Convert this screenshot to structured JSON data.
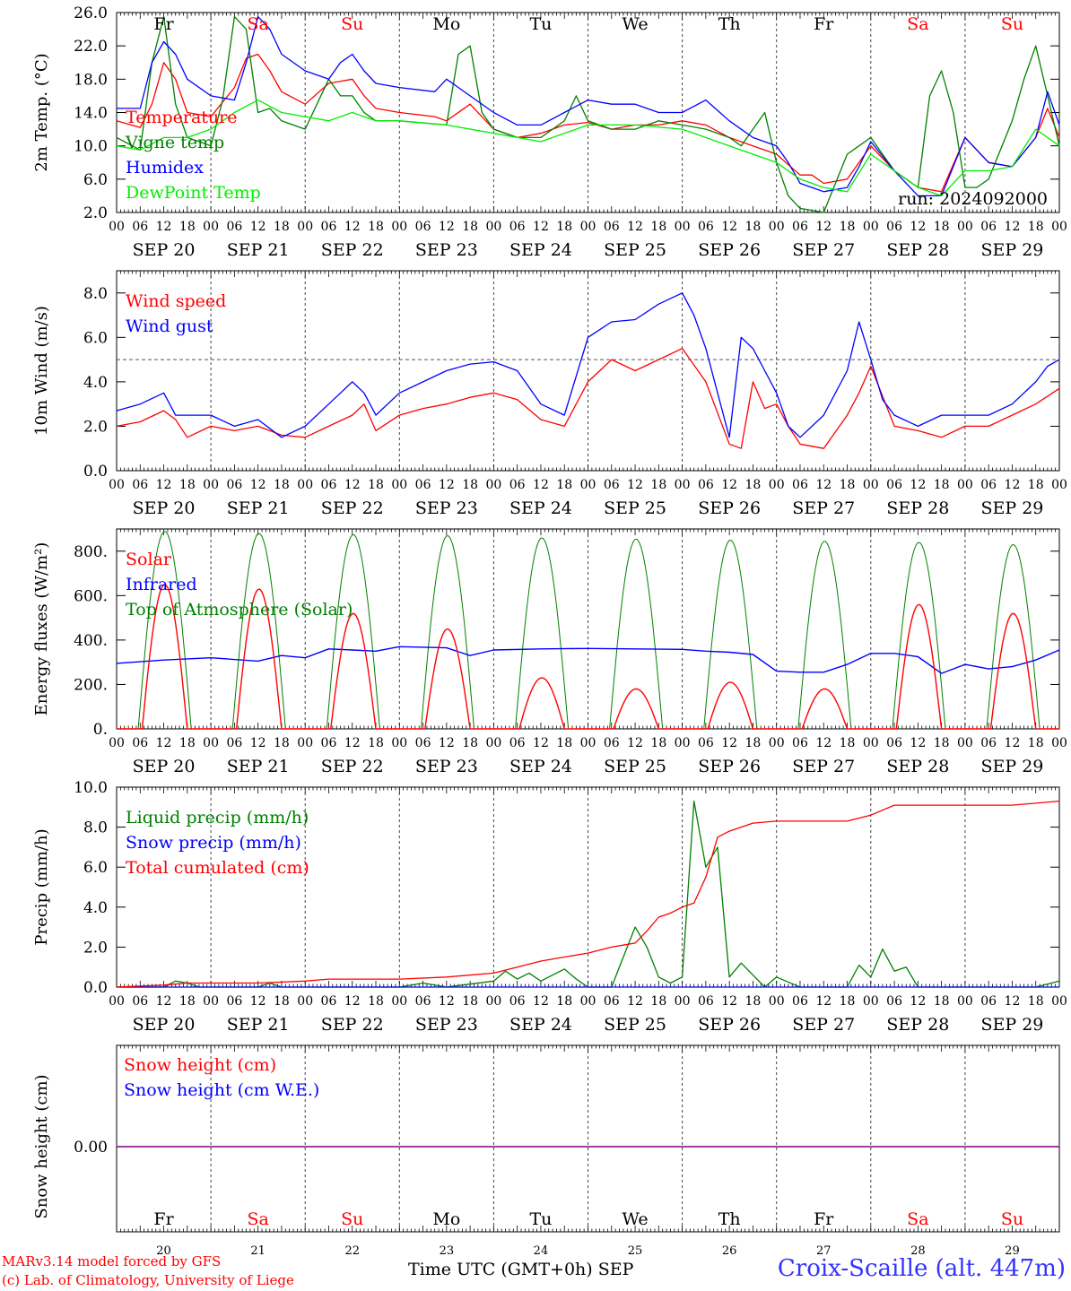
{
  "days": {
    "names": [
      "Fr",
      "Sa",
      "Su",
      "Mo",
      "Tu",
      "We",
      "Th",
      "Fr",
      "Sa",
      "Su"
    ],
    "weekend": [
      false,
      true,
      true,
      false,
      false,
      false,
      false,
      false,
      true,
      true
    ],
    "dates": [
      "SEP 20",
      "SEP 21",
      "SEP 22",
      "SEP 23",
      "SEP 24",
      "SEP 25",
      "SEP 26",
      "SEP 27",
      "SEP 28",
      "SEP 29"
    ],
    "nums": [
      "20",
      "21",
      "22",
      "23",
      "24",
      "25",
      "26",
      "27",
      "28",
      "29"
    ],
    "hours": [
      "00",
      "06",
      "12",
      "18"
    ],
    "last_hour": "00"
  },
  "colors": {
    "red": "#ff0000",
    "green": "#008000",
    "blue": "#0000ff",
    "light_green": "#00ee00",
    "purple": "#800080"
  },
  "footer": {
    "credit_line1": "MARv3.14 model forced by GFS",
    "credit_line2": "(c) Lab. of Climatology, University of Liege",
    "xaxis_title": "Time UTC (GMT+0h) SEP",
    "station": "Croix-Scaille (alt. 447m)"
  },
  "chart_data": [
    {
      "type": "line",
      "ylabel": "2m Temp. (°C)",
      "ylim": [
        2,
        26
      ],
      "yticks": [
        "2.0",
        "6.0",
        "10.0",
        "14.0",
        "18.0",
        "22.0",
        "26.0"
      ],
      "annotation": "run: 2024092000",
      "x_unit": "hours since SEP 20 00 UTC",
      "series": [
        {
          "name": "Temperature",
          "color": "red",
          "x": [
            0,
            6,
            9,
            12,
            15,
            18,
            24,
            30,
            33,
            36,
            39,
            42,
            48,
            54,
            60,
            63,
            66,
            72,
            81,
            84,
            90,
            96,
            102,
            108,
            114,
            120,
            126,
            132,
            138,
            144,
            150,
            156,
            162,
            168,
            174,
            177,
            180,
            186,
            189,
            192,
            198,
            204,
            210,
            216,
            222,
            228,
            234,
            237,
            240
          ],
          "y": [
            13,
            12.2,
            15,
            20,
            18,
            14,
            13.5,
            17,
            20.5,
            21,
            19,
            16.5,
            15,
            17.5,
            18,
            16,
            14.5,
            14,
            13.5,
            13,
            15,
            12,
            11,
            11.5,
            12.5,
            12.8,
            12,
            12.5,
            12.5,
            13,
            12.5,
            11,
            10,
            9,
            6.5,
            6.5,
            5.5,
            6,
            8,
            10,
            7,
            5,
            4.5,
            11,
            8,
            7.5,
            11,
            14.5,
            11
          ]
        },
        {
          "name": "Vigne temp",
          "color": "green",
          "x": [
            0,
            6,
            9,
            12,
            15,
            18,
            21,
            24,
            27,
            30,
            33,
            36,
            39,
            42,
            48,
            54,
            57,
            60,
            63,
            66,
            72,
            84,
            87,
            90,
            93,
            96,
            102,
            108,
            114,
            117,
            120,
            126,
            132,
            138,
            144,
            150,
            156,
            159,
            162,
            165,
            168,
            171,
            174,
            180,
            186,
            189,
            192,
            195,
            198,
            204,
            207,
            210,
            213,
            216,
            219,
            222,
            228,
            231,
            234,
            237,
            240
          ],
          "y": [
            11,
            9.5,
            20,
            25.5,
            15,
            11,
            10.5,
            10,
            15.5,
            25.5,
            24,
            14,
            14.5,
            13,
            12,
            18,
            16,
            16,
            14,
            13,
            13,
            12.5,
            21,
            22,
            14,
            12,
            11,
            11,
            13,
            16,
            13,
            12,
            12,
            13,
            12.5,
            12,
            11,
            10,
            12,
            14,
            8,
            4,
            2.5,
            2,
            9,
            10,
            11,
            9,
            7,
            5,
            16,
            19,
            14,
            5,
            5,
            6,
            13,
            18,
            22,
            16,
            10
          ]
        },
        {
          "name": "Humidex",
          "color": "blue",
          "x": [
            0,
            6,
            9,
            12,
            15,
            18,
            24,
            30,
            33,
            36,
            39,
            42,
            48,
            54,
            57,
            60,
            63,
            66,
            72,
            81,
            84,
            87,
            90,
            96,
            102,
            108,
            114,
            120,
            126,
            132,
            138,
            144,
            150,
            156,
            162,
            168,
            171,
            174,
            177,
            180,
            186,
            189,
            192,
            198,
            204,
            210,
            216,
            222,
            228,
            234,
            237,
            240
          ],
          "y": [
            14.5,
            14.5,
            20,
            22.5,
            21,
            18,
            16,
            15.5,
            20,
            25.5,
            24,
            21,
            19,
            18,
            20,
            21,
            19,
            17.5,
            17,
            16.5,
            18,
            17,
            16,
            14,
            12.5,
            12.5,
            14,
            15.5,
            15,
            15,
            14,
            14,
            15.5,
            13,
            11,
            10,
            8,
            5.5,
            5,
            4.5,
            5,
            7.5,
            10.5,
            7,
            4,
            4,
            11,
            8,
            7.5,
            11,
            16.5,
            12.5
          ]
        },
        {
          "name": "DewPoint Temp",
          "color": "light_green",
          "x": [
            0,
            6,
            12,
            18,
            24,
            30,
            36,
            42,
            48,
            54,
            60,
            66,
            72,
            84,
            96,
            108,
            120,
            132,
            144,
            156,
            168,
            174,
            180,
            186,
            192,
            198,
            204,
            210,
            216,
            222,
            228,
            234,
            240
          ],
          "y": [
            10,
            9.5,
            11,
            11,
            12,
            14,
            15.5,
            14,
            13.5,
            13,
            14,
            13,
            13,
            12.5,
            11.5,
            10.5,
            12.5,
            12.5,
            12,
            10,
            8,
            6,
            5,
            4.5,
            9,
            7,
            5,
            4,
            7,
            7,
            7.5,
            12,
            10
          ]
        }
      ]
    },
    {
      "type": "line",
      "ylabel": "10m Wind (m/s)",
      "ylim": [
        0,
        9
      ],
      "yticks": [
        "0.0",
        "2.0",
        "4.0",
        "6.0",
        "8.0"
      ],
      "reference_line": 5,
      "series": [
        {
          "name": "Wind speed",
          "color": "red",
          "x": [
            0,
            6,
            12,
            15,
            18,
            24,
            30,
            36,
            42,
            48,
            54,
            60,
            63,
            66,
            72,
            78,
            84,
            90,
            96,
            102,
            108,
            114,
            120,
            126,
            132,
            138,
            144,
            150,
            156,
            159,
            162,
            165,
            168,
            171,
            174,
            180,
            186,
            189,
            192,
            198,
            204,
            210,
            216,
            222,
            228,
            234,
            240
          ],
          "y": [
            2,
            2.2,
            2.7,
            2.3,
            1.5,
            2,
            1.8,
            2,
            1.6,
            1.5,
            2,
            2.5,
            3,
            1.8,
            2.5,
            2.8,
            3,
            3.3,
            3.5,
            3.2,
            2.3,
            2,
            4,
            5,
            4.5,
            5,
            5.5,
            4,
            1.2,
            1,
            4,
            2.8,
            3,
            2,
            1.2,
            1,
            2.5,
            3.5,
            4.7,
            2,
            1.8,
            1.5,
            2,
            2,
            2.5,
            3,
            3.7
          ]
        },
        {
          "name": "Wind gust",
          "color": "blue",
          "x": [
            0,
            6,
            12,
            15,
            18,
            24,
            30,
            36,
            42,
            48,
            54,
            60,
            63,
            66,
            72,
            78,
            84,
            90,
            96,
            102,
            108,
            114,
            120,
            126,
            132,
            138,
            144,
            147,
            150,
            156,
            159,
            162,
            165,
            168,
            171,
            174,
            180,
            186,
            189,
            192,
            195,
            198,
            204,
            210,
            216,
            222,
            228,
            234,
            237,
            240
          ],
          "y": [
            2.7,
            3,
            3.5,
            2.5,
            2.5,
            2.5,
            2,
            2.3,
            1.5,
            2,
            3,
            4,
            3.5,
            2.5,
            3.5,
            4,
            4.5,
            4.8,
            4.9,
            4.5,
            3,
            2.5,
            6,
            6.7,
            6.8,
            7.5,
            8,
            7,
            5.5,
            1.5,
            6,
            5.5,
            4.5,
            3.5,
            2,
            1.5,
            2.5,
            4.5,
            6.7,
            5,
            3.2,
            2.5,
            2,
            2.5,
            2.5,
            2.5,
            3,
            4,
            4.7,
            5
          ]
        }
      ]
    },
    {
      "type": "line",
      "ylabel": "Energy fluxes (W/m²)",
      "ylim": [
        0,
        900
      ],
      "yticks": [
        "0.",
        "200.",
        "400.",
        "600.",
        "800."
      ],
      "solar_peaks": [
        650,
        630,
        520,
        450,
        230,
        180,
        210,
        180,
        560,
        520
      ],
      "toa_peaks": [
        890,
        880,
        875,
        870,
        860,
        855,
        850,
        845,
        840,
        830
      ],
      "series": [
        {
          "name": "Solar",
          "color": "red"
        },
        {
          "name": "Infrared",
          "color": "blue",
          "x": [
            0,
            12,
            24,
            36,
            42,
            48,
            54,
            60,
            66,
            72,
            84,
            90,
            96,
            108,
            120,
            132,
            144,
            150,
            156,
            162,
            168,
            174,
            180,
            186,
            192,
            198,
            204,
            210,
            216,
            222,
            228,
            234,
            240
          ],
          "y": [
            295,
            310,
            320,
            305,
            330,
            320,
            360,
            355,
            350,
            370,
            365,
            330,
            355,
            360,
            362,
            360,
            358,
            350,
            345,
            335,
            260,
            255,
            255,
            290,
            340,
            340,
            325,
            250,
            290,
            270,
            280,
            310,
            355
          ]
        },
        {
          "name": "Top of Atmosphere (Solar)",
          "color": "green"
        }
      ]
    },
    {
      "type": "line",
      "ylabel": "Precip (mm/h)",
      "ylim": [
        0,
        10
      ],
      "yticks": [
        "0.0",
        "2.0",
        "4.0",
        "6.0",
        "8.0",
        "10.0"
      ],
      "series": [
        {
          "name": "Liquid precip (mm/h)",
          "color": "green",
          "x": [
            0,
            12,
            15,
            18,
            21,
            24,
            36,
            39,
            42,
            48,
            72,
            78,
            84,
            96,
            99,
            102,
            105,
            108,
            111,
            114,
            117,
            120,
            126,
            129,
            132,
            135,
            138,
            141,
            144,
            147,
            150,
            153,
            156,
            159,
            162,
            165,
            168,
            174,
            180,
            186,
            189,
            192,
            195,
            198,
            201,
            204,
            234,
            240
          ],
          "y": [
            0,
            0,
            0.3,
            0.2,
            0,
            0,
            0,
            0.2,
            0,
            0,
            0,
            0.2,
            0,
            0.3,
            0.8,
            0.4,
            0.7,
            0.3,
            0.6,
            0.9,
            0.4,
            0,
            0,
            1.5,
            3,
            2,
            0.5,
            0.2,
            0.5,
            9.3,
            6,
            7,
            0.5,
            1.2,
            0.6,
            0,
            0.5,
            0,
            0,
            0,
            1.1,
            0.5,
            1.9,
            0.8,
            1,
            0,
            0,
            0.3
          ]
        },
        {
          "name": "Snow precip (mm/h)",
          "color": "blue",
          "x": [
            0,
            240
          ],
          "y": [
            0,
            0
          ]
        },
        {
          "name": "Total cumulated (cm)",
          "color": "red",
          "x": [
            0,
            12,
            18,
            24,
            36,
            48,
            54,
            60,
            72,
            84,
            96,
            102,
            108,
            114,
            120,
            126,
            129,
            132,
            135,
            138,
            141,
            144,
            147,
            150,
            153,
            156,
            159,
            162,
            168,
            180,
            186,
            192,
            198,
            204,
            216,
            228,
            240
          ],
          "y": [
            0,
            0.1,
            0.2,
            0.2,
            0.2,
            0.3,
            0.4,
            0.4,
            0.4,
            0.5,
            0.7,
            1,
            1.3,
            1.5,
            1.7,
            2,
            2.1,
            2.2,
            2.8,
            3.5,
            3.7,
            4,
            4.2,
            5.5,
            7.5,
            7.8,
            8,
            8.2,
            8.3,
            8.3,
            8.3,
            8.6,
            9.1,
            9.1,
            9.1,
            9.1,
            9.3
          ]
        }
      ]
    },
    {
      "type": "line",
      "ylabel": "Snow height (cm)",
      "yticks": [
        "0.00"
      ],
      "series": [
        {
          "name": "Snow height (cm)",
          "color": "red",
          "x": [
            0,
            240
          ],
          "y": [
            0,
            0
          ]
        },
        {
          "name": "Snow height (cm W.E.)",
          "color": "blue",
          "x": [
            0,
            240
          ],
          "y": [
            0,
            0
          ]
        }
      ]
    }
  ]
}
